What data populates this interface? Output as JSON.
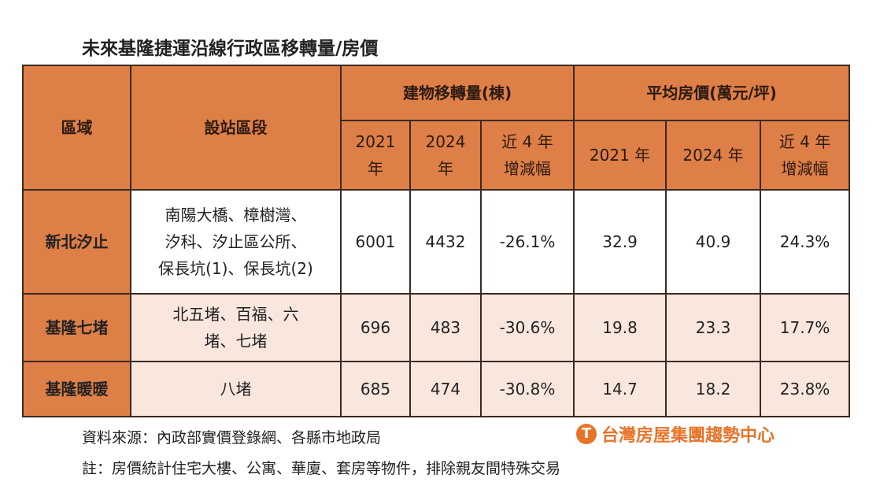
{
  "title": "未來基隆捷運沿線行政區移轉量/房價",
  "headers": {
    "region": "區域",
    "segment": "設站區段",
    "transfer": "建物移轉量(棟)",
    "price": "平均房價(萬元/坪)",
    "t2021": "2021\n年",
    "t2024": "2024\n年",
    "tchg": "近 4 年\n增減幅",
    "p2021": "2021 年",
    "p2024": "2024 年",
    "pchg": "近 4 年\n增減幅"
  },
  "rows": [
    {
      "region": "新北汐止",
      "segment": "南陽大橋、樟樹灣、\n汐科、汐止區公所、\n保長坑(1)、保長坑(2)",
      "t2021": "6001",
      "t2024": "4432",
      "tchg": "-26.1%",
      "p2021": "32.9",
      "p2024": "40.9",
      "pchg": "24.3%"
    },
    {
      "region": "基隆七堵",
      "segment": "北五堵、百福、六\n堵、七堵",
      "t2021": "696",
      "t2024": "483",
      "tchg": "-30.6%",
      "p2021": "19.8",
      "p2024": "23.3",
      "pchg": "17.7%"
    },
    {
      "region": "基隆暖暖",
      "segment": "八堵",
      "t2021": "685",
      "t2024": "474",
      "tchg": "-30.8%",
      "p2021": "14.7",
      "p2024": "18.2",
      "pchg": "23.8%"
    }
  ],
  "source": "資料來源：內政部實價登錄網、各縣市地政局",
  "note": "註：房價統計住宅大樓、公寓、華廈、套房等物件，排除親友間特殊交易",
  "logo_text": "台灣房屋集團趨勢中心",
  "colors": {
    "header": "#de7f47",
    "row_alt": "#f9e7de",
    "logo": "#e8742a"
  }
}
